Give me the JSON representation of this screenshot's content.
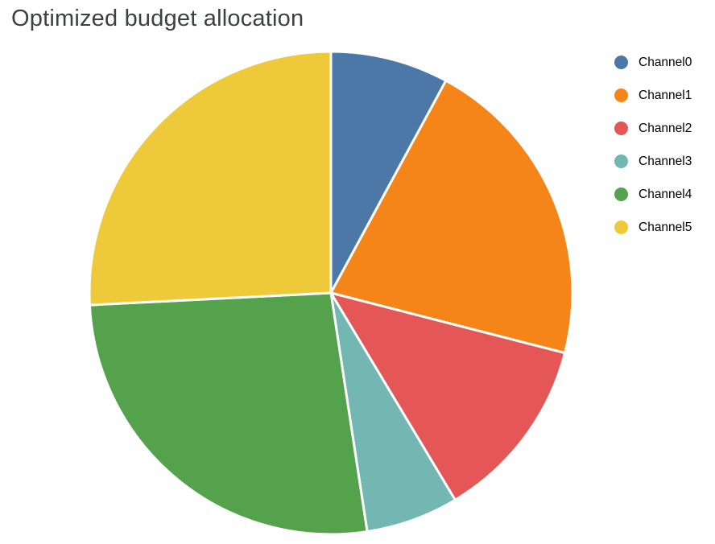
{
  "title": "Optimized budget allocation",
  "colors": {
    "background": "#ffffff",
    "title_text": "#3c4043",
    "legend_text": "#000000",
    "slice_gap": "#ffffff"
  },
  "chart_data": {
    "type": "pie",
    "title": "Optimized budget allocation",
    "categories": [
      "Channel0",
      "Channel1",
      "Channel2",
      "Channel3",
      "Channel4",
      "Channel5"
    ],
    "values": [
      7.9,
      21.1,
      12.4,
      6.2,
      26.6,
      25.8
    ],
    "slice_colors": [
      "#4c78a8",
      "#f58518",
      "#e45756",
      "#72b7b2",
      "#54a24b",
      "#eeca3b"
    ],
    "start_angle_deg": 0,
    "direction": "clockwise",
    "legend_position": "right",
    "legend_marker": "circle"
  }
}
